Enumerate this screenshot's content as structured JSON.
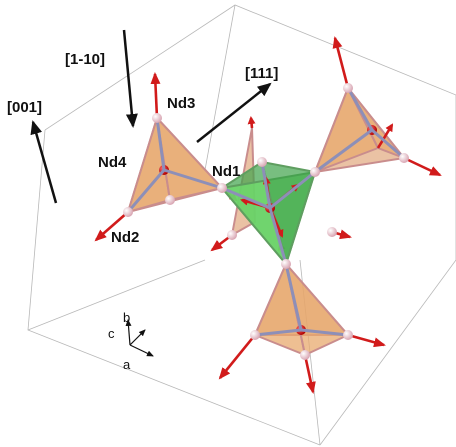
{
  "labels": {
    "dir_001": "[001]",
    "dir_1m10": "[1-10]",
    "dir_111": "[111]",
    "nd1": "Nd1",
    "nd2": "Nd2",
    "nd3": "Nd3",
    "nd4": "Nd4"
  },
  "axes": {
    "a": "a",
    "b": "b",
    "c": "c"
  },
  "colors": {
    "tetrahedron": "#e8a96e",
    "central_tetrahedron": "#6fd86b",
    "spin_arrow": "#d11b1b",
    "atom": "#f2d6dc",
    "bond": "#8d8fb8",
    "direction_arrow": "#111111",
    "cell_edge": "#b8b8b8"
  }
}
